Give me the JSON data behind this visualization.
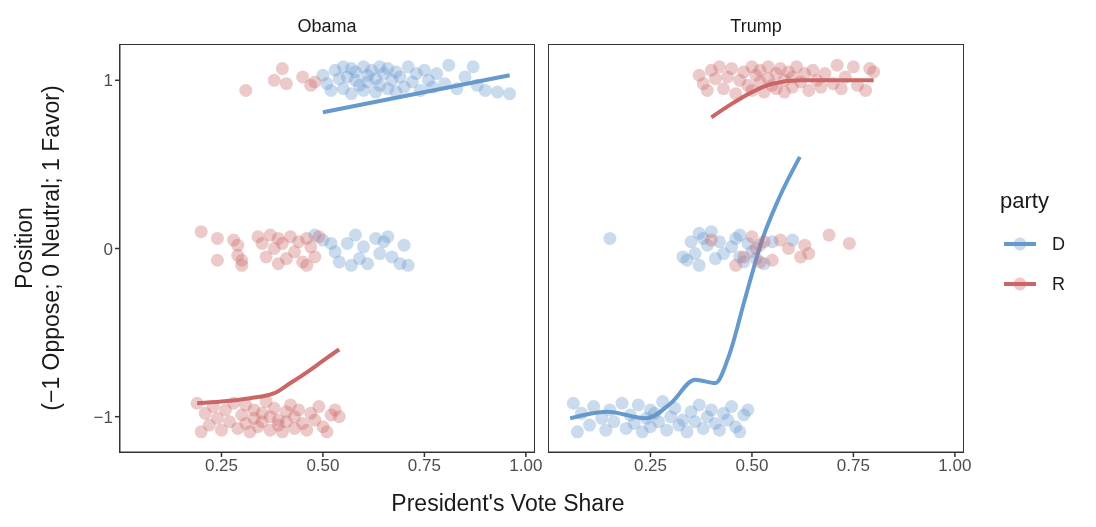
{
  "chart_data": [
    {
      "type": "scatter",
      "title": "Obama",
      "xlabel": "President's Vote Share",
      "ylabel": "Position\n(−1 Oppose; 0 Neutral; 1 Favor)",
      "xlim": [
        0,
        1.02
      ],
      "ylim": [
        -1.21,
        1.21
      ],
      "xticks": [
        {
          "value": 0.25,
          "label": "0.25"
        },
        {
          "value": 0.5,
          "label": "0.50"
        },
        {
          "value": 0.75,
          "label": "0.75"
        },
        {
          "value": 1,
          "label": "1.00"
        }
      ],
      "yticks": [
        {
          "value": -1,
          "label": "−1"
        },
        0,
        1
      ],
      "legend": "right",
      "legend_title": "party",
      "series": [
        {
          "name": "D",
          "color": "#6699cc",
          "x": [
            0.5,
            0.51,
            0.52,
            0.53,
            0.54,
            0.55,
            0.55,
            0.56,
            0.57,
            0.57,
            0.58,
            0.58,
            0.59,
            0.6,
            0.6,
            0.61,
            0.61,
            0.62,
            0.63,
            0.63,
            0.64,
            0.64,
            0.65,
            0.66,
            0.66,
            0.67,
            0.68,
            0.68,
            0.69,
            0.7,
            0.71,
            0.72,
            0.73,
            0.74,
            0.75,
            0.76,
            0.77,
            0.78,
            0.8,
            0.81,
            0.83,
            0.85,
            0.87,
            0.88,
            0.9,
            0.93,
            0.96,
            0.48,
            0.5,
            0.52,
            0.53,
            0.54,
            0.56,
            0.57,
            0.58,
            0.59,
            0.6,
            0.61,
            0.63,
            0.64,
            0.65,
            0.66,
            0.67,
            0.69,
            0.7,
            0.71
          ],
          "values": [
            1.03,
            0.98,
            0.94,
            1.06,
            1.01,
            1.08,
            0.95,
            1.02,
            1.07,
            0.92,
            1.0,
            1.05,
            0.97,
            1.08,
            0.94,
            1.03,
            0.99,
            1.06,
            0.93,
            1.01,
            1.08,
            0.97,
            1.04,
            0.95,
            1.07,
            1.0,
            0.93,
            1.05,
            1.02,
            0.96,
            1.08,
            0.99,
            1.04,
            0.94,
            1.06,
            1.0,
            0.96,
            1.04,
            0.98,
            1.09,
            0.95,
            1.02,
            1.08,
            0.97,
            0.94,
            0.93,
            0.92,
            0.08,
            0.05,
            0.03,
            -0.02,
            -0.08,
            0.03,
            -0.1,
            0.08,
            -0.06,
            0.01,
            -0.09,
            0.06,
            -0.03,
            0.04,
            0.07,
            -0.05,
            -0.09,
            0.02,
            -0.1
          ]
        },
        {
          "name": "R",
          "color": "#cc6666",
          "x": [
            0.31,
            0.38,
            0.4,
            0.41,
            0.45,
            0.47,
            0.48,
            0.2,
            0.24,
            0.24,
            0.28,
            0.29,
            0.29,
            0.3,
            0.3,
            0.34,
            0.35,
            0.36,
            0.37,
            0.38,
            0.39,
            0.39,
            0.4,
            0.41,
            0.42,
            0.43,
            0.44,
            0.45,
            0.46,
            0.46,
            0.47,
            0.48,
            0.49,
            0.19,
            0.2,
            0.21,
            0.22,
            0.23,
            0.24,
            0.25,
            0.26,
            0.27,
            0.28,
            0.29,
            0.3,
            0.31,
            0.31,
            0.32,
            0.33,
            0.33,
            0.34,
            0.35,
            0.35,
            0.36,
            0.37,
            0.37,
            0.38,
            0.39,
            0.39,
            0.4,
            0.41,
            0.41,
            0.42,
            0.43,
            0.43,
            0.44,
            0.45,
            0.46,
            0.47,
            0.48,
            0.49,
            0.5,
            0.51,
            0.52,
            0.53,
            0.54
          ],
          "values": [
            0.94,
            1.0,
            1.07,
            0.98,
            1.02,
            0.97,
            0.99,
            0.1,
            0.06,
            -0.07,
            0.05,
            -0.04,
            0.02,
            -0.1,
            -0.07,
            0.07,
            0.03,
            -0.05,
            0.08,
            0.0,
            0.06,
            -0.09,
            0.03,
            -0.06,
            0.07,
            -0.02,
            0.04,
            -0.08,
            0.06,
            -0.1,
            0.01,
            -0.05,
            0.07,
            -0.92,
            -1.09,
            -0.98,
            -1.05,
            -0.94,
            -1.01,
            -1.08,
            -0.96,
            -1.03,
            -0.92,
            -1.07,
            -0.99,
            -1.04,
            -0.93,
            -1.09,
            -1.01,
            -0.96,
            -1.06,
            -0.98,
            -1.03,
            -0.91,
            -1.08,
            -1.0,
            -0.95,
            -1.05,
            -1.02,
            -1.09,
            -0.97,
            -1.03,
            -0.93,
            -1.07,
            -1.0,
            -0.96,
            -1.04,
            -1.08,
            -0.98,
            -1.02,
            -0.94,
            -1.06,
            -1.09,
            -0.99,
            -0.96,
            -1.0
          ]
        },
        {
          "type": "line",
          "color": "#6699cc",
          "x": [
            0.5,
            0.96
          ],
          "values": [
            0.81,
            1.03
          ]
        },
        {
          "type": "line",
          "color": "#cc6666",
          "x": [
            0.19,
            0.25,
            0.32,
            0.38,
            0.42,
            0.47,
            0.51,
            0.54
          ],
          "values": [
            -0.92,
            -0.91,
            -0.89,
            -0.86,
            -0.8,
            -0.72,
            -0.65,
            -0.6
          ]
        }
      ]
    },
    {
      "type": "scatter",
      "title": "Trump",
      "xlim": [
        0,
        1.02
      ],
      "ylim": [
        -1.21,
        1.21
      ],
      "xticks": [
        {
          "value": 0.25,
          "label": "0.25"
        },
        {
          "value": 0.5,
          "label": "0.50"
        },
        {
          "value": 0.75,
          "label": "0.75"
        },
        {
          "value": 1,
          "label": "1.00"
        }
      ],
      "tick_labels": "x",
      "series": [
        {
          "color": "#6699cc",
          "x": [
            0.15,
            0.33,
            0.34,
            0.35,
            0.36,
            0.37,
            0.37,
            0.38,
            0.39,
            0.4,
            0.41,
            0.42,
            0.43,
            0.45,
            0.46,
            0.47,
            0.47,
            0.48,
            0.49,
            0.5,
            0.51,
            0.52,
            0.53,
            0.55,
            0.6,
            0.06,
            0.07,
            0.08,
            0.1,
            0.11,
            0.13,
            0.14,
            0.15,
            0.16,
            0.18,
            0.19,
            0.2,
            0.21,
            0.22,
            0.23,
            0.24,
            0.25,
            0.25,
            0.26,
            0.27,
            0.28,
            0.29,
            0.3,
            0.31,
            0.32,
            0.33,
            0.34,
            0.35,
            0.36,
            0.37,
            0.38,
            0.39,
            0.4,
            0.41,
            0.42,
            0.43,
            0.44,
            0.45,
            0.46,
            0.47,
            0.48,
            0.49
          ],
          "values": [
            0.06,
            -0.05,
            -0.07,
            0.04,
            -0.03,
            0.09,
            -0.1,
            0.06,
            0.02,
            0.1,
            -0.06,
            0.04,
            -0.03,
            0.01,
            0.06,
            -0.05,
            0.08,
            -0.08,
            0.03,
            -0.02,
            -0.06,
            0.02,
            -0.09,
            0.04,
            0.05,
            -0.92,
            -1.09,
            -0.98,
            -1.05,
            -0.94,
            -1.01,
            -1.08,
            -0.96,
            -1.03,
            -0.92,
            -1.07,
            -0.99,
            -1.04,
            -0.93,
            -1.09,
            -1.01,
            -0.96,
            -1.06,
            -0.98,
            -1.03,
            -0.91,
            -1.08,
            -1.0,
            -0.95,
            -1.05,
            -1.02,
            -1.09,
            -0.97,
            -1.03,
            -0.93,
            -1.07,
            -1.0,
            -0.96,
            -1.04,
            -1.08,
            -0.98,
            -1.02,
            -0.94,
            -1.06,
            -1.09,
            -0.99,
            -0.96
          ]
        },
        {
          "color": "#cc6666",
          "x": [
            0.37,
            0.38,
            0.39,
            0.4,
            0.41,
            0.42,
            0.43,
            0.44,
            0.45,
            0.46,
            0.47,
            0.48,
            0.49,
            0.5,
            0.5,
            0.51,
            0.52,
            0.52,
            0.53,
            0.54,
            0.54,
            0.55,
            0.56,
            0.56,
            0.57,
            0.58,
            0.58,
            0.59,
            0.6,
            0.6,
            0.61,
            0.62,
            0.63,
            0.64,
            0.65,
            0.66,
            0.67,
            0.68,
            0.7,
            0.71,
            0.72,
            0.73,
            0.75,
            0.76,
            0.78,
            0.79,
            0.8,
            0.4,
            0.46,
            0.48,
            0.5,
            0.51,
            0.52,
            0.53,
            0.55,
            0.57,
            0.59,
            0.62,
            0.63,
            0.64,
            0.69,
            0.74
          ],
          "values": [
            1.03,
            0.98,
            0.94,
            1.06,
            1.01,
            1.08,
            0.95,
            1.02,
            1.07,
            0.92,
            1.0,
            1.05,
            0.97,
            1.08,
            0.94,
            1.03,
            0.99,
            1.06,
            0.93,
            1.01,
            1.08,
            0.97,
            1.04,
            0.95,
            1.07,
            1.0,
            0.93,
            1.05,
            1.02,
            0.96,
            1.08,
            0.99,
            1.04,
            0.94,
            1.06,
            1.0,
            0.96,
            1.04,
            0.98,
            1.09,
            0.95,
            1.02,
            1.08,
            0.97,
            0.94,
            1.07,
            1.05,
            0.05,
            -0.1,
            -0.05,
            0.07,
            0.0,
            -0.08,
            0.04,
            -0.07,
            0.05,
            0.0,
            -0.05,
            0.02,
            -0.03,
            0.08,
            0.03
          ]
        },
        {
          "type": "line",
          "color": "#6699cc",
          "x": [
            0.052,
            0.142,
            0.24,
            0.3,
            0.36,
            0.41,
            0.443,
            0.484,
            0.525,
            0.565,
            0.618
          ],
          "values": [
            -1.01,
            -0.97,
            -1.01,
            -0.92,
            -0.78,
            -0.8,
            -0.64,
            -0.29,
            0.05,
            0.29,
            0.545
          ]
        },
        {
          "type": "line",
          "color": "#cc6666",
          "x": [
            0.4,
            0.45,
            0.5,
            0.55,
            0.62,
            0.7,
            0.8
          ],
          "values": [
            0.78,
            0.86,
            0.93,
            0.98,
            1.0,
            1.0,
            1.0
          ]
        }
      ]
    }
  ]
}
